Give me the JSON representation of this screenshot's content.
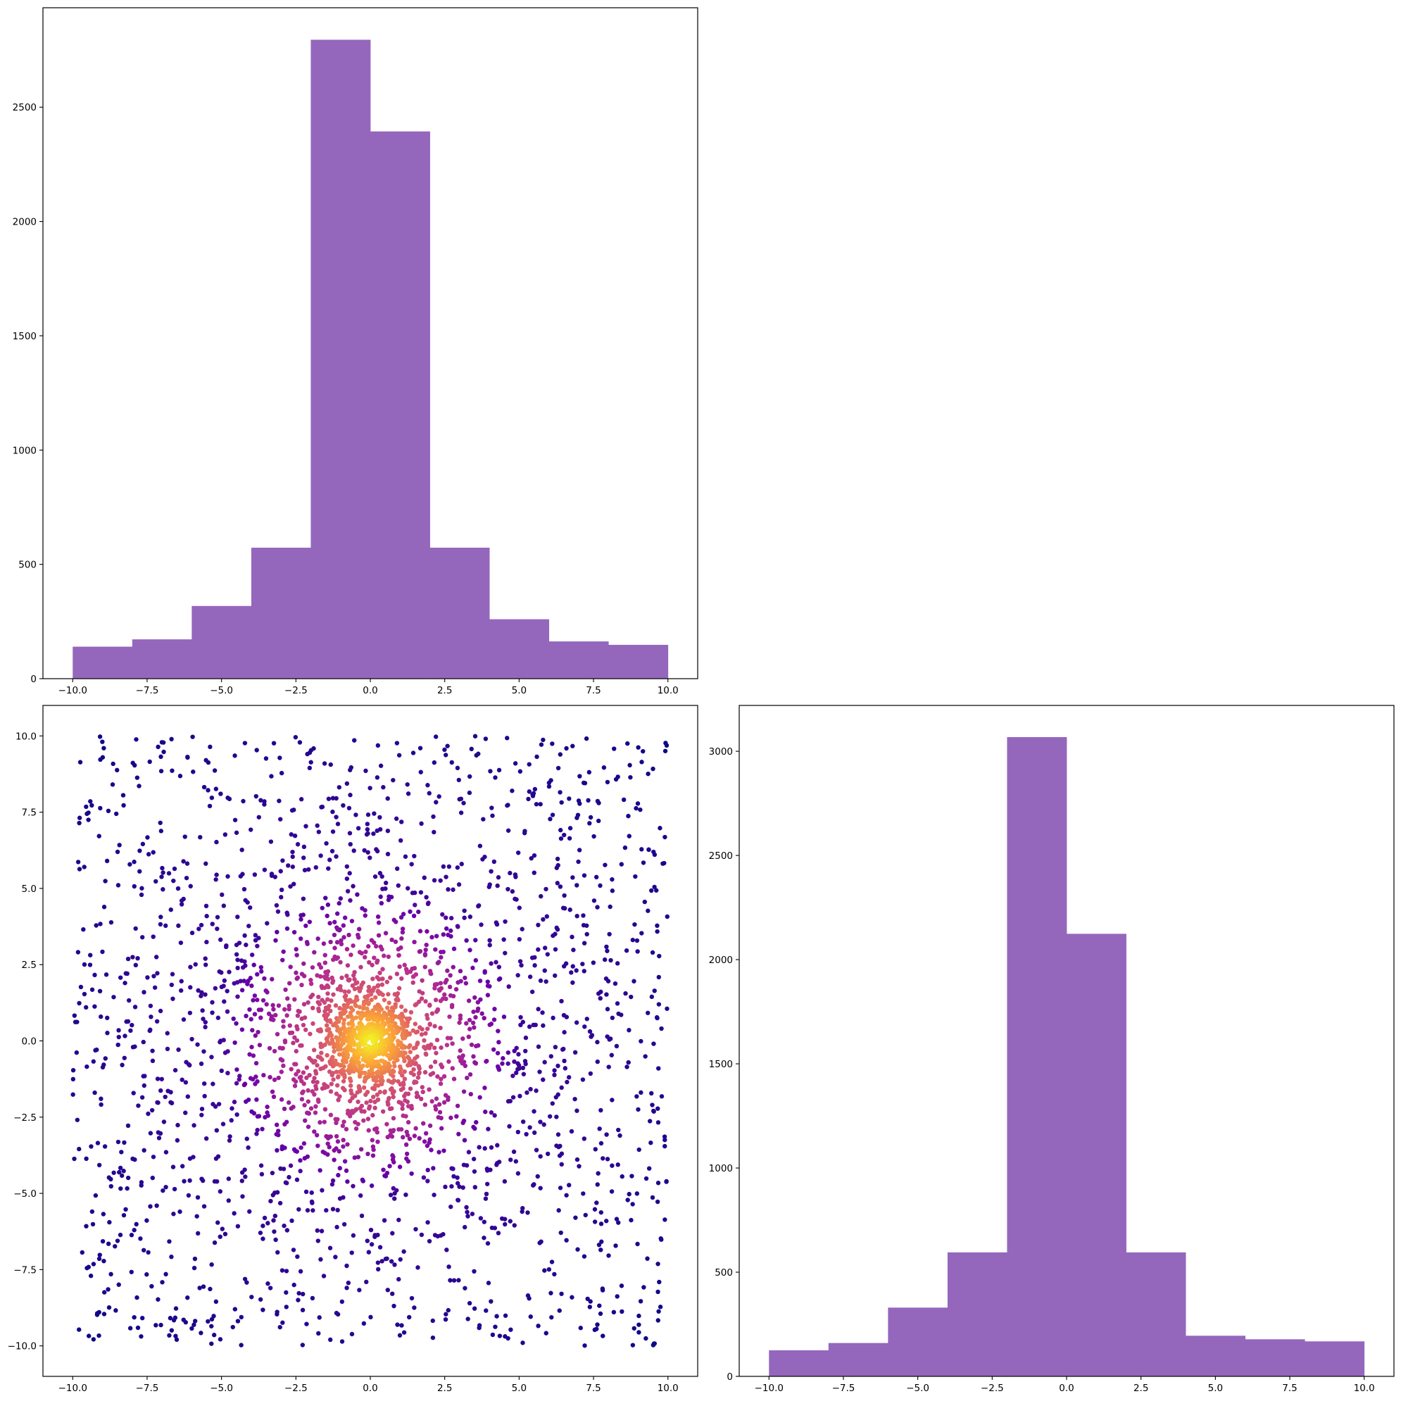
{
  "chart_data": [
    {
      "type": "bar",
      "panel": "top-left",
      "title": "",
      "xlabel": "",
      "ylabel": "",
      "bin_edges": [
        -10,
        -8,
        -6,
        -4,
        -2,
        0,
        2,
        4,
        6,
        8,
        10
      ],
      "values": [
        140,
        172,
        318,
        573,
        2795,
        2394,
        573,
        260,
        163,
        148
      ],
      "color": "#9467bd",
      "xlim": [
        -11,
        11
      ],
      "ylim": [
        0,
        2935
      ],
      "xticks": [
        -10.0,
        -7.5,
        -5.0,
        -2.5,
        0.0,
        2.5,
        5.0,
        7.5,
        10.0
      ],
      "yticks": [
        0,
        500,
        1000,
        1500,
        2000,
        2500
      ],
      "xtick_labels": [
        "−10.0",
        "−7.5",
        "−5.0",
        "−2.5",
        "0.0",
        "2.5",
        "5.0",
        "7.5",
        "10.0"
      ],
      "ytick_labels": [
        "0",
        "500",
        "1000",
        "1500",
        "2000",
        "2500"
      ],
      "grid": false,
      "legend": "none"
    },
    {
      "type": "scatter",
      "panel": "bottom-left",
      "title": "",
      "xlabel": "",
      "ylabel": "",
      "n_points": 5000,
      "description": "uniform background on [-10,10] plus dense Gaussian core at origin, colored by local density",
      "colormap": [
        "#0d0887",
        "#6a00a8",
        "#b12a90",
        "#e16462",
        "#fca636",
        "#f0f921"
      ],
      "xlim": [
        -11,
        11
      ],
      "ylim": [
        -11,
        11
      ],
      "xticks": [
        -10.0,
        -7.5,
        -5.0,
        -2.5,
        0.0,
        2.5,
        5.0,
        7.5,
        10.0
      ],
      "yticks": [
        -10.0,
        -7.5,
        -5.0,
        -2.5,
        0.0,
        2.5,
        5.0,
        7.5,
        10.0
      ],
      "xtick_labels": [
        "−10.0",
        "−7.5",
        "−5.0",
        "−2.5",
        "0.0",
        "2.5",
        "5.0",
        "7.5",
        "10.0"
      ],
      "ytick_labels": [
        "−10.0",
        "−7.5",
        "−5.0",
        "−2.5",
        "0.0",
        "2.5",
        "5.0",
        "7.5",
        "10.0"
      ],
      "grid": false,
      "legend": "none"
    },
    {
      "type": "bar",
      "panel": "bottom-right",
      "title": "",
      "xlabel": "",
      "ylabel": "",
      "bin_edges": [
        -10,
        -8,
        -6,
        -4,
        -2,
        0,
        2,
        4,
        6,
        8,
        10
      ],
      "values": [
        125,
        160,
        330,
        595,
        3068,
        2124,
        595,
        195,
        178,
        168
      ],
      "color": "#9467bd",
      "xlim": [
        -11,
        11
      ],
      "ylim": [
        0,
        3220
      ],
      "xticks": [
        -10.0,
        -7.5,
        -5.0,
        -2.5,
        0.0,
        2.5,
        5.0,
        7.5,
        10.0
      ],
      "yticks": [
        0,
        500,
        1000,
        1500,
        2000,
        2500,
        3000
      ],
      "xtick_labels": [
        "−10.0",
        "−7.5",
        "−5.0",
        "−2.5",
        "0.0",
        "2.5",
        "5.0",
        "7.5",
        "10.0"
      ],
      "ytick_labels": [
        "0",
        "500",
        "1000",
        "1500",
        "2000",
        "2500",
        "3000"
      ],
      "grid": false,
      "legend": "none"
    }
  ]
}
